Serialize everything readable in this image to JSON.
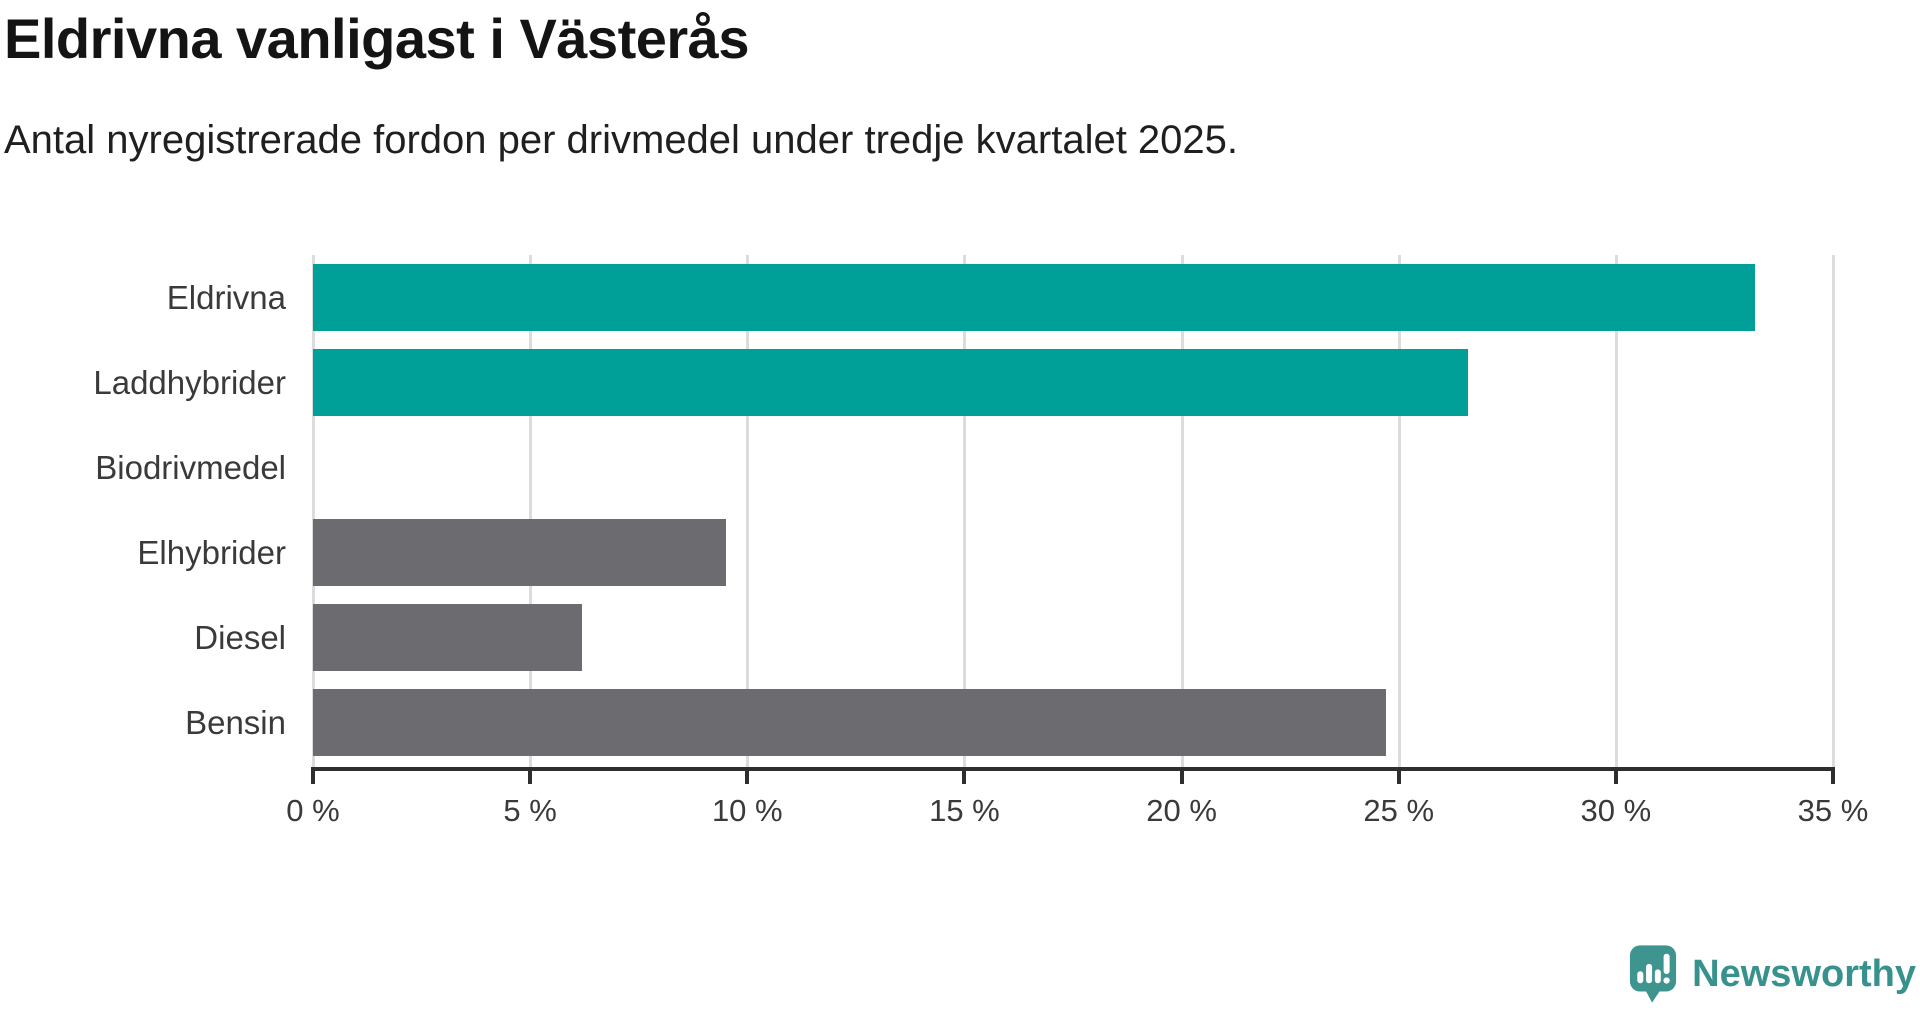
{
  "header": {
    "title": "Eldrivna vanligast i Västerås",
    "subtitle": "Antal nyregistrerade fordon per drivmedel under tredje kvartalet 2025."
  },
  "chart_data": {
    "type": "bar",
    "orientation": "horizontal",
    "title": "Eldrivna vanligast i Västerås",
    "subtitle": "Antal nyregistrerade fordon per drivmedel under tredje kvartalet 2025.",
    "categories": [
      "Eldrivna",
      "Laddhybrider",
      "Biodrivmedel",
      "Elhybrider",
      "Diesel",
      "Bensin"
    ],
    "values": [
      33.2,
      26.6,
      0,
      9.5,
      6.2,
      24.7
    ],
    "unit": "%",
    "bar_colors": [
      "#00a099",
      "#00a099",
      "#6c6c70",
      "#6c6c70",
      "#6c6c70",
      "#6c6c70"
    ],
    "xlabel": "",
    "ylabel": "",
    "xlim": [
      0,
      35
    ],
    "x_ticks": [
      0,
      5,
      10,
      15,
      20,
      25,
      30,
      35
    ],
    "x_tick_labels": [
      "0 %",
      "5 %",
      "10 %",
      "15 %",
      "20 %",
      "25 %",
      "30 %",
      "35 %"
    ],
    "grid": true,
    "gridlines": "vertical",
    "legend": "none"
  },
  "branding": {
    "logo_text": "Newsworthy",
    "logo_color": "#37928d",
    "logo_icon": "newsworthy-speech-bubble-chart-icon"
  },
  "colors": {
    "accent_teal": "#00a099",
    "bar_gray": "#6c6c70",
    "gridline": "#dcdcdc",
    "axis": "#2e2e2e",
    "title_text": "#141414",
    "label_text": "#3a3a3c"
  }
}
